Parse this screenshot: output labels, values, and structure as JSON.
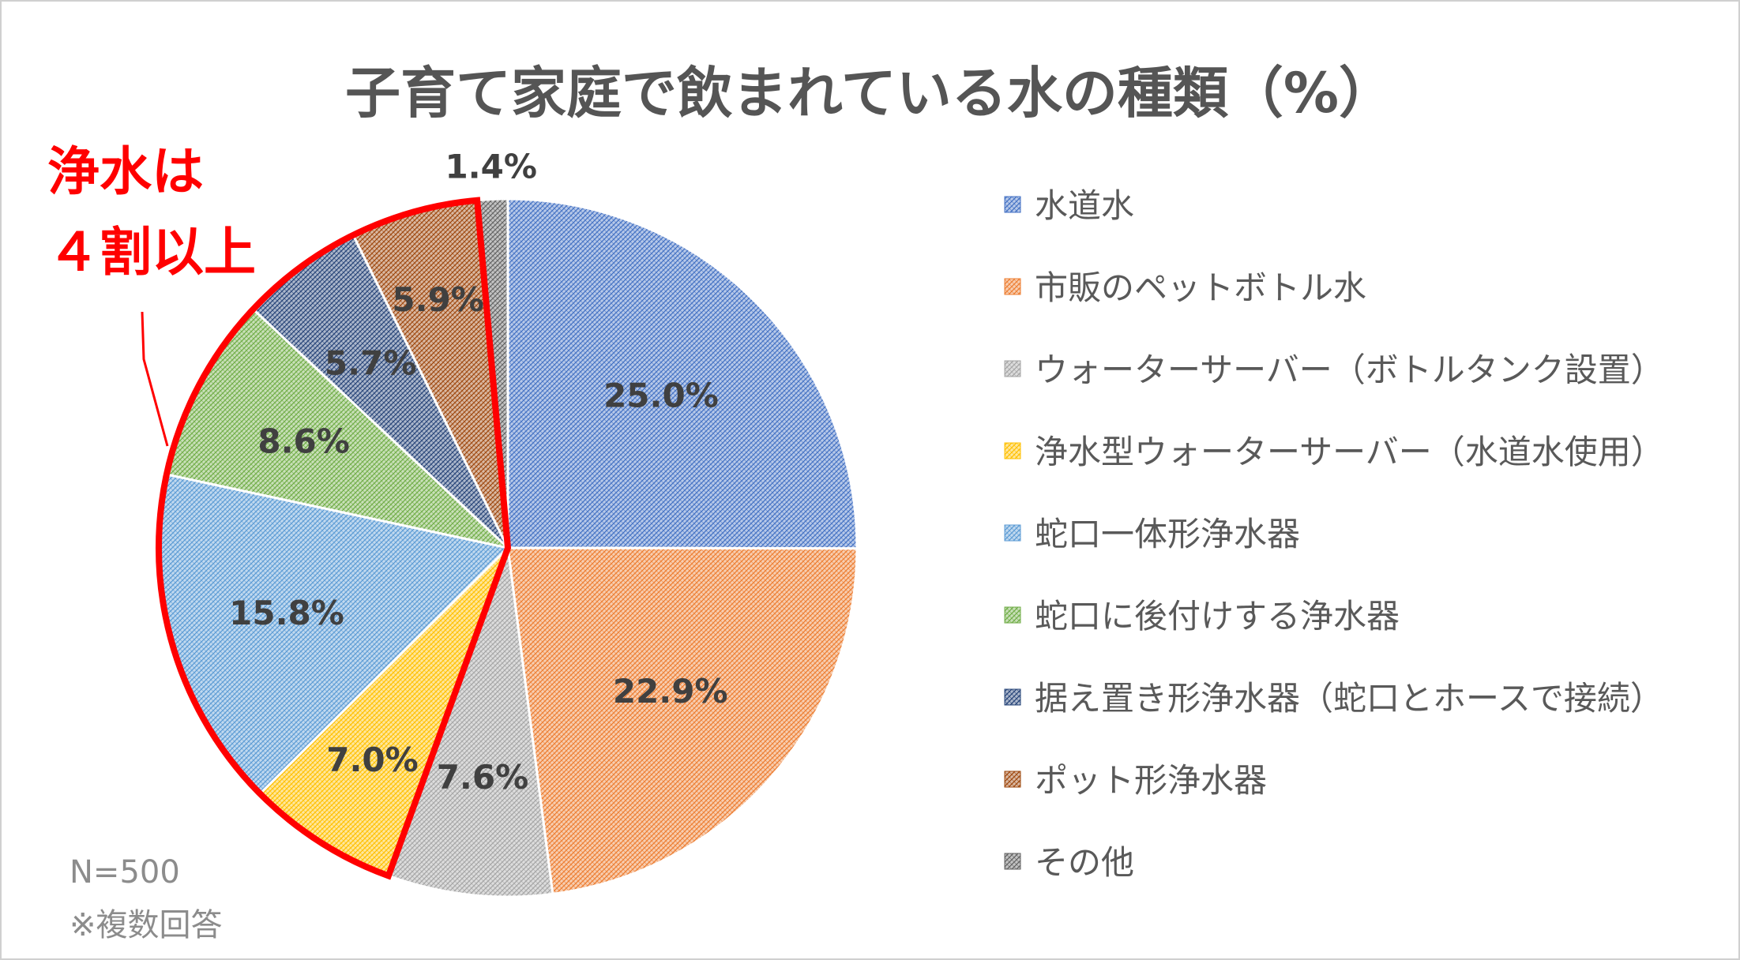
{
  "chart_data": {
    "type": "pie",
    "title": "子育て家庭で飲まれている水の種類（%）",
    "slices": [
      {
        "label": "水道水",
        "value": 25.0,
        "display": "25.0%",
        "color": "#4472c4"
      },
      {
        "label": "市販のペットボトル水",
        "value": 22.9,
        "display": "22.9%",
        "color": "#ed7d31"
      },
      {
        "label": "ウォーターサーバー（ボトルタンク設置）",
        "value": 7.6,
        "display": "7.6%",
        "color": "#a5a5a5"
      },
      {
        "label": "浄水型ウォーターサーバー（水道水使用）",
        "value": 7.0,
        "display": "7.0%",
        "color": "#ffc000"
      },
      {
        "label": "蛇口一体形浄水器",
        "value": 15.8,
        "display": "15.8%",
        "color": "#5b9bd5"
      },
      {
        "label": "蛇口に後付けする浄水器",
        "value": 8.6,
        "display": "8.6%",
        "color": "#70ad47"
      },
      {
        "label": "据え置き形浄水器（蛇口とホースで接続）",
        "value": 5.7,
        "display": "5.7%",
        "color": "#264478"
      },
      {
        "label": "ポット形浄水器",
        "value": 5.9,
        "display": "5.9%",
        "color": "#9e480e"
      },
      {
        "label": "その他",
        "value": 1.4,
        "display": "1.4%",
        "color": "#636363"
      }
    ],
    "highlight": {
      "from_index": 3,
      "to_index": 7,
      "color": "#ff0000"
    },
    "legend_placement": "right"
  },
  "callout": {
    "line1": "浄水は",
    "line2": "４割以上"
  },
  "notes": {
    "sample": "N=500",
    "multiple": "※複数回答"
  }
}
